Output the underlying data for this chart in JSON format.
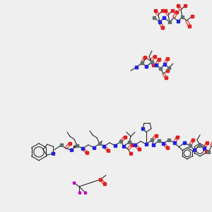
{
  "bg_color": "#efefef",
  "bond_color": "#2a2a2a",
  "N_color": "#2222dd",
  "O_color": "#dd2222",
  "F_color": "#bb00bb",
  "C_sq_color": "#607070",
  "fig_w": 3.0,
  "fig_h": 3.0,
  "dpi": 100
}
